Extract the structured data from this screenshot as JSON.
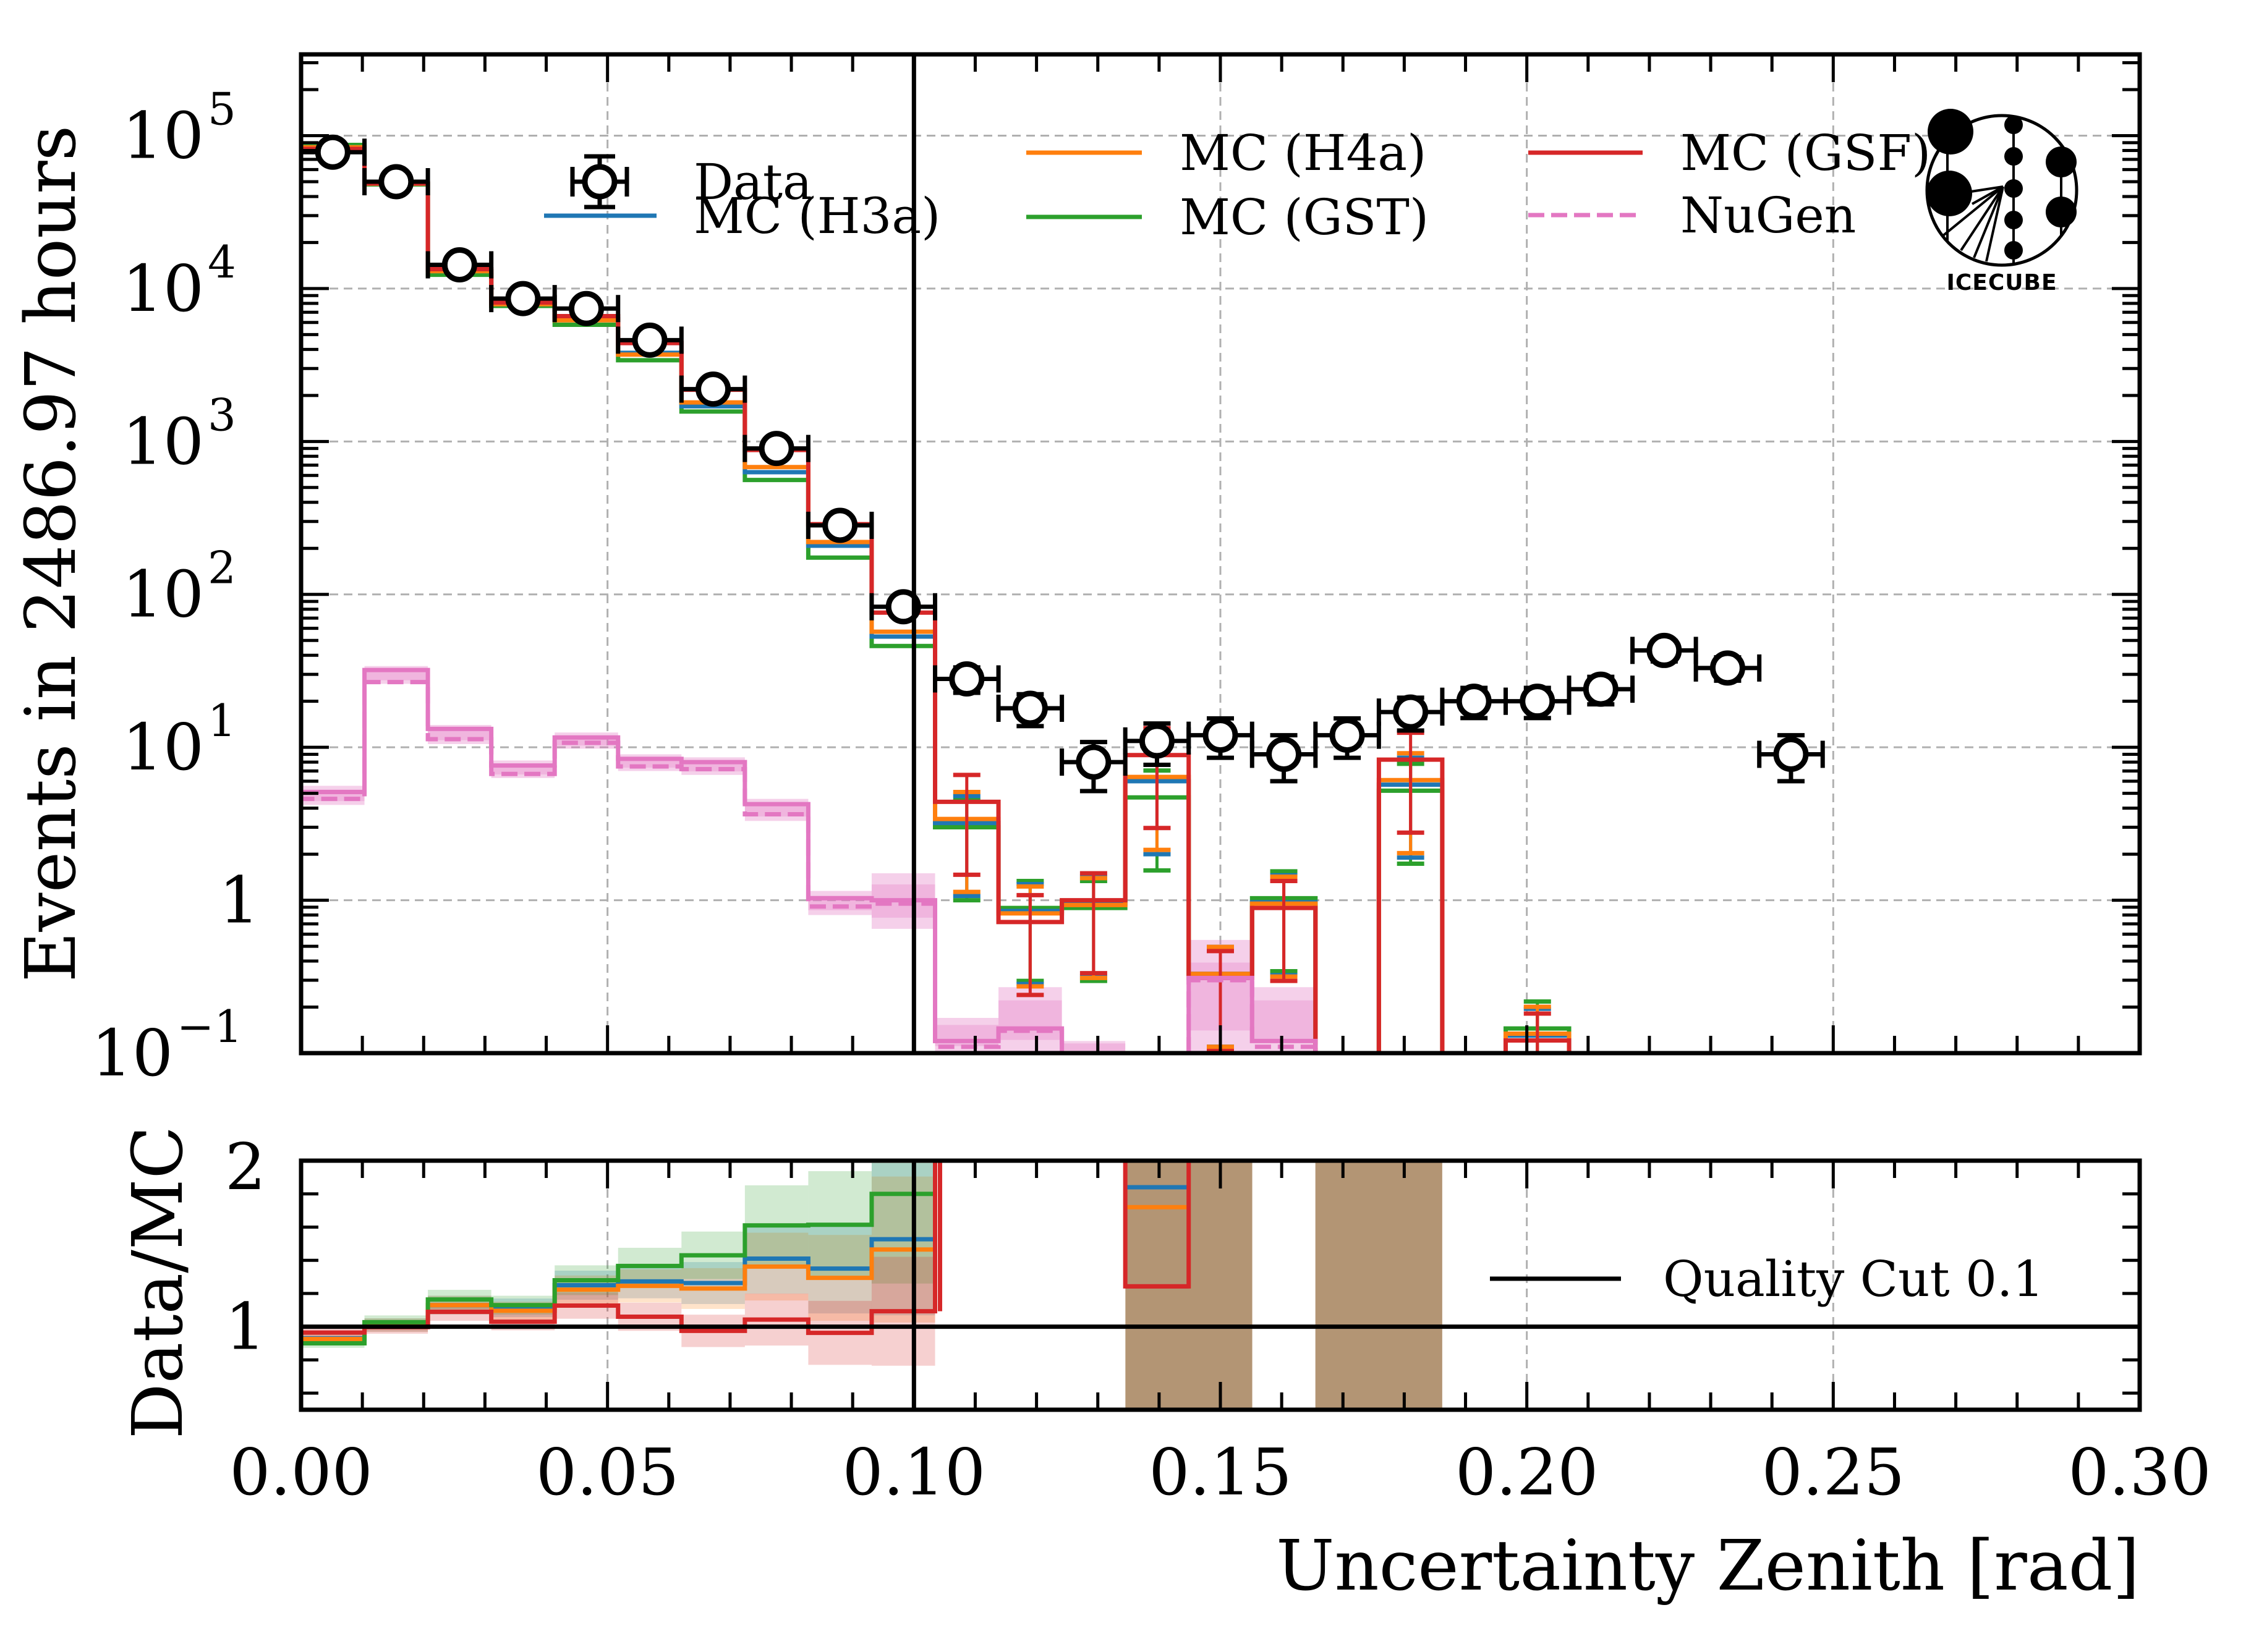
{
  "chart_data": [
    {
      "panel": "main",
      "type": "histogram",
      "ylabel": "Events in 2486.97 hours",
      "xlabel": "",
      "yscale": "log",
      "xlim": [
        0.0,
        0.3
      ],
      "ylim": [
        0.1,
        340000
      ],
      "grid": true,
      "ytick_labels": [
        {
          "value": 100000,
          "base": "10",
          "exp": "5"
        },
        {
          "value": 10000,
          "base": "10",
          "exp": "4"
        },
        {
          "value": 1000,
          "base": "10",
          "exp": "3"
        },
        {
          "value": 100,
          "base": "10",
          "exp": "2"
        },
        {
          "value": 10,
          "base": "10",
          "exp": "1"
        },
        {
          "value": 1,
          "base": "1",
          "exp": ""
        },
        {
          "value": 0.1,
          "base": "10",
          "exp": "−1"
        }
      ],
      "bin_edges_rule": "30 equally spaced edges from 0.0 to 0.3 (29 bins)",
      "n_bins": 29,
      "vertical_line": {
        "x": 0.1,
        "label": "Quality Cut 0.1",
        "color": "#000000"
      },
      "legend": {
        "placement": "top",
        "entries": [
          {
            "label": "Data",
            "style": "marker-errorbar",
            "color": "#000000"
          },
          {
            "label": "MC (H3a)",
            "style": "line",
            "color": "#1f77b4"
          },
          {
            "label": "MC (H4a)",
            "style": "line",
            "color": "#ff7f0e"
          },
          {
            "label": "MC (GST)",
            "style": "line",
            "color": "#2ca02c"
          },
          {
            "label": "MC (GSF)",
            "style": "line",
            "color": "#d62728"
          },
          {
            "label": "NuGen",
            "style": "dashed",
            "color": "#e377c2"
          }
        ]
      },
      "series": [
        {
          "name": "Data",
          "kind": "points",
          "color": "#000000",
          "values": [
            78000,
            50000,
            14300,
            8600,
            7400,
            4600,
            2200,
            900,
            283,
            83,
            28,
            18,
            8,
            11,
            12,
            9,
            12,
            17,
            20,
            20,
            24,
            43,
            33,
            9,
            null,
            null,
            null,
            null,
            null
          ]
        },
        {
          "name": "MC (H3a)",
          "kind": "step",
          "color": "#1f77b4",
          "values": [
            84000,
            48500,
            13000,
            7900,
            6300,
            3800,
            1700,
            630,
            208,
            53,
            3.2,
            0.85,
            0.95,
            6.0,
            0.33,
            0.97,
            null,
            5.7,
            null,
            0.13,
            null,
            null,
            null,
            null,
            null,
            null,
            null,
            null,
            null
          ]
        },
        {
          "name": "MC (H4a)",
          "kind": "step",
          "color": "#ff7f0e",
          "values": [
            84000,
            48500,
            13000,
            7900,
            6200,
            3700,
            1800,
            680,
            220,
            57,
            3.4,
            0.82,
            0.93,
            6.4,
            0.33,
            0.95,
            null,
            6.1,
            null,
            0.134,
            null,
            null,
            null,
            null,
            null,
            null,
            null,
            null,
            null
          ]
        },
        {
          "name": "MC (GST)",
          "kind": "step",
          "color": "#2ca02c",
          "values": [
            87000,
            48000,
            12300,
            7700,
            5800,
            3400,
            1570,
            560,
            174,
            46,
            3.0,
            0.89,
            0.89,
            4.7,
            0.33,
            1.03,
            null,
            5.2,
            null,
            0.145,
            null,
            null,
            null,
            null,
            null,
            null,
            null,
            null,
            null
          ]
        },
        {
          "name": "MC (GSF)",
          "kind": "step",
          "color": "#d62728",
          "values": [
            82000,
            48700,
            13400,
            8100,
            6600,
            4400,
            2180,
            880,
            288,
            76,
            4.4,
            0.72,
            1.0,
            8.9,
            0.31,
            0.89,
            null,
            8.3,
            null,
            0.121,
            null,
            null,
            null,
            null,
            null,
            null,
            null,
            null,
            null
          ]
        },
        {
          "name": "NuGen",
          "kind": "step-band",
          "color": "#e377c2",
          "values_solid": [
            5.1,
            32,
            13.2,
            7.6,
            11.6,
            8.4,
            8.0,
            4.25,
            1.03,
            1.0,
            0.12,
            0.145,
            0.1,
            null,
            0.31,
            0.12,
            null,
            null,
            null,
            null,
            null,
            null,
            null,
            null,
            null,
            null,
            null,
            null,
            null
          ],
          "values_dashed": [
            4.6,
            26.7,
            11.3,
            6.7,
            10.7,
            7.5,
            7.2,
            3.65,
            0.91,
            0.95,
            0.11,
            0.14,
            0.09,
            null,
            0.3,
            0.11,
            null,
            null,
            null,
            null,
            null,
            null,
            null,
            null,
            null,
            null,
            null,
            null,
            null
          ],
          "band_low": [
            4.2,
            26,
            10.5,
            6.3,
            9.8,
            7.0,
            6.6,
            3.3,
            0.8,
            0.65,
            0.08,
            0.1,
            0.08,
            null,
            0.08,
            0.08,
            null,
            null,
            null,
            null,
            null,
            null,
            null,
            null,
            null,
            null,
            null,
            null,
            null
          ],
          "band_high": [
            5.6,
            34,
            14,
            8.2,
            12.5,
            9.0,
            8.6,
            4.6,
            1.15,
            1.5,
            0.17,
            0.27,
            0.12,
            null,
            0.55,
            0.27,
            null,
            null,
            null,
            null,
            null,
            null,
            null,
            null,
            null,
            null,
            null,
            null,
            null
          ]
        }
      ]
    },
    {
      "panel": "ratio",
      "type": "step",
      "ylabel": "Data/MC",
      "xlabel": "Uncertainty Zenith [rad]",
      "xlim": [
        0.0,
        0.3
      ],
      "ylim": [
        0.5,
        2.0
      ],
      "grid": true,
      "xtick_labels": [
        "0.00",
        "0.05",
        "0.10",
        "0.15",
        "0.20",
        "0.25",
        "0.30"
      ],
      "xtick_values": [
        0.0,
        0.05,
        0.1,
        0.15,
        0.2,
        0.25,
        0.3
      ],
      "ytick_labels": [
        "1",
        "2"
      ],
      "ytick_values": [
        1,
        2
      ],
      "reference_line": 1.0,
      "legend": {
        "placement": "right",
        "entries": [
          {
            "label": "Quality Cut 0.1",
            "style": "line",
            "color": "#000000"
          }
        ]
      },
      "shaded_regions": [
        {
          "x_range": [
            0.1345,
            0.1552
          ],
          "color": "#b39574"
        },
        {
          "x_range": [
            0.1655,
            0.1862
          ],
          "color": "#b39574"
        }
      ],
      "series": [
        {
          "name": "MC (H3a)",
          "color": "#1f77b4",
          "values": [
            0.93,
            1.01,
            1.13,
            1.114,
            1.25,
            1.273,
            1.263,
            1.41,
            1.35,
            1.527,
            3.0,
            null,
            null,
            1.84,
            null,
            null,
            null,
            null,
            null,
            null,
            null,
            null,
            null,
            null,
            null,
            null,
            null,
            null,
            null
          ]
        },
        {
          "name": "MC (H4a)",
          "color": "#ff7f0e",
          "values": [
            0.926,
            1.01,
            1.13,
            1.096,
            1.223,
            1.246,
            1.23,
            1.362,
            1.294,
            1.465,
            3.0,
            null,
            null,
            1.72,
            null,
            null,
            null,
            null,
            null,
            null,
            null,
            null,
            null,
            null,
            null,
            null,
            null,
            null,
            null
          ]
        },
        {
          "name": "MC (GST)",
          "color": "#2ca02c",
          "values": [
            0.9,
            1.027,
            1.164,
            1.13,
            1.28,
            1.366,
            1.43,
            1.61,
            1.614,
            1.8,
            3.0,
            null,
            null,
            2.3,
            null,
            null,
            null,
            null,
            null,
            null,
            null,
            null,
            null,
            null,
            null,
            null,
            null,
            null,
            null
          ]
        },
        {
          "name": "MC (GSF)",
          "color": "#d62728",
          "values": [
            0.965,
            0.998,
            1.09,
            1.03,
            1.127,
            1.06,
            0.975,
            1.043,
            0.963,
            1.093,
            3.0,
            null,
            null,
            1.243,
            null,
            null,
            null,
            null,
            null,
            null,
            null,
            null,
            null,
            null,
            null,
            null,
            null,
            null,
            null
          ]
        }
      ]
    }
  ],
  "logo": {
    "text": "IceCube",
    "name": "IceCube logo"
  }
}
